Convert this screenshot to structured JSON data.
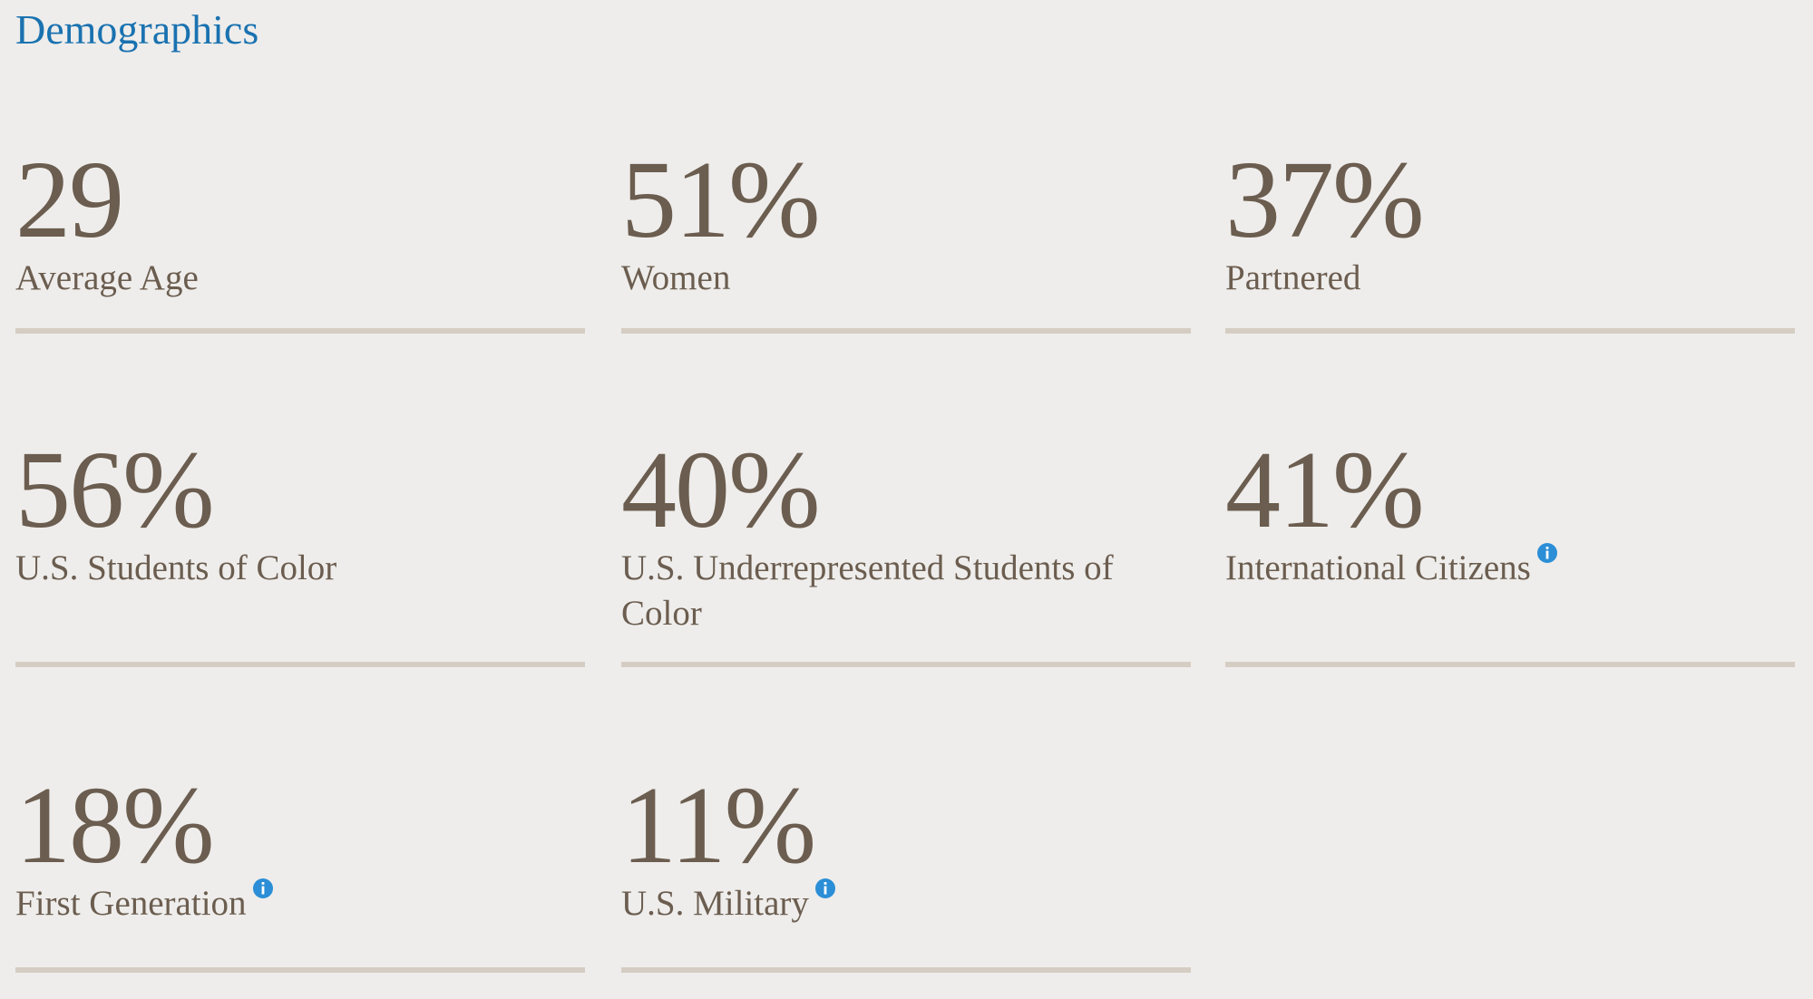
{
  "header": {
    "title": "Demographics"
  },
  "stats": [
    {
      "value": "29",
      "label": "Average Age",
      "info": false
    },
    {
      "value": "51%",
      "label": "Women",
      "info": false
    },
    {
      "value": "37%",
      "label": "Partnered",
      "info": false
    },
    {
      "value": "56%",
      "label": "U.S. Students of Color",
      "info": false
    },
    {
      "value": "40%",
      "label": "U.S. Underrepresented Students of Color",
      "info": false
    },
    {
      "value": "41%",
      "label": "International Citizens",
      "info": true
    },
    {
      "value": "18%",
      "label": "First Generation",
      "info": true
    },
    {
      "value": "11%",
      "label": "U.S. Military",
      "info": true
    }
  ]
}
